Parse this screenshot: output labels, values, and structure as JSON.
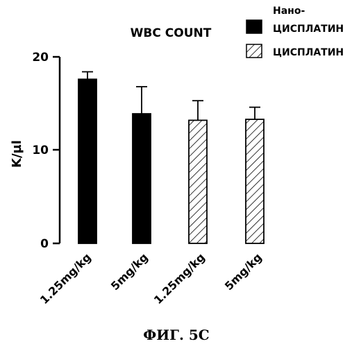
{
  "chart_data": {
    "type": "bar",
    "title": "WBC COUNT",
    "ylabel": "K/µl",
    "xlabel": "",
    "ylim": [
      0,
      20
    ],
    "yticks": [
      0,
      10,
      20
    ],
    "categories": [
      "1.25mg/kg",
      "5mg/kg",
      "1.25mg/kg",
      "5mg/kg"
    ],
    "values": [
      17.6,
      13.9,
      13.2,
      13.3
    ],
    "errors": [
      0.8,
      2.9,
      2.1,
      1.3
    ],
    "groups": [
      "Нано-ЦИСПЛАТИН",
      "Нано-ЦИСПЛАТИН",
      "ЦИСПЛАТИН",
      "ЦИСПЛАТИН"
    ],
    "legend": {
      "position": "top-right",
      "entries": [
        {
          "name_line1": "Нано-",
          "name_line2": "ЦИСПЛАТИН",
          "fill": "solid",
          "color": "#000000"
        },
        {
          "name_line1": "",
          "name_line2": "ЦИСПЛАТИН",
          "fill": "hatched",
          "color": "#000000"
        }
      ]
    },
    "grid": false
  },
  "caption": "ФИГ. 5С"
}
